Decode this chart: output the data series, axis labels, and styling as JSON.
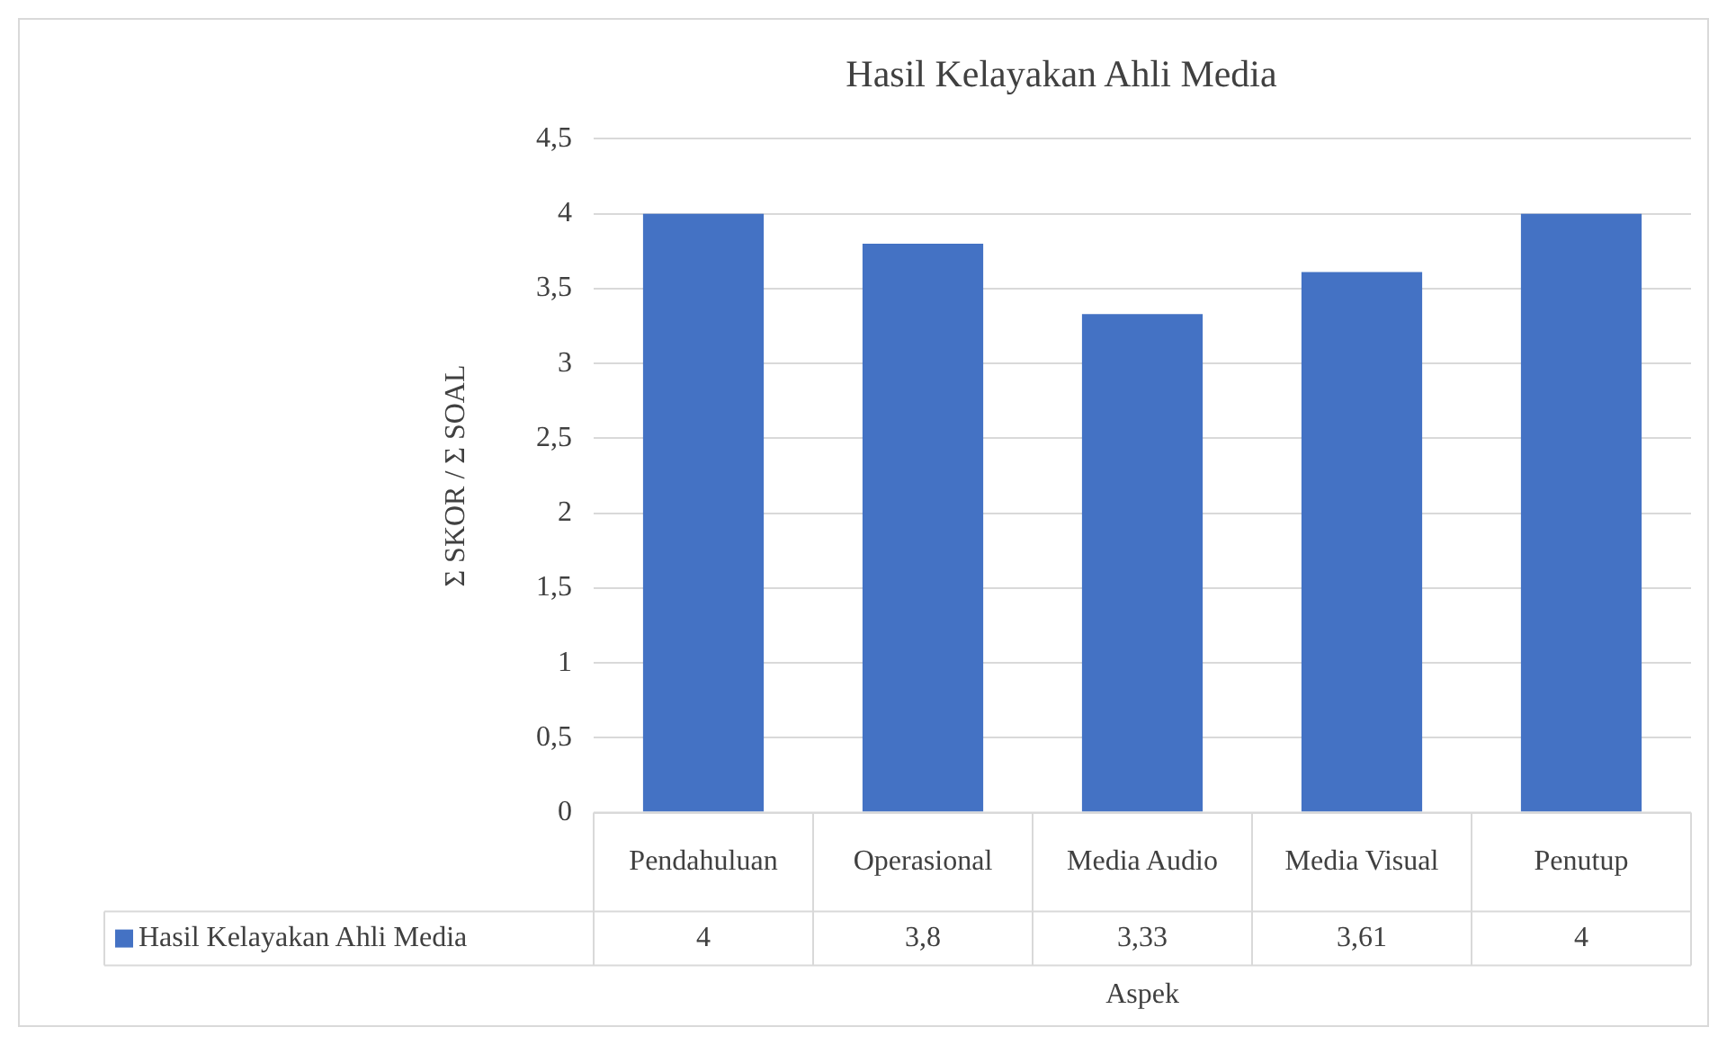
{
  "chart_data": {
    "type": "bar",
    "title": "Hasil Kelayakan Ahli Media",
    "xlabel": "Aspek",
    "ylabel": "Σ SKOR / Σ SOAL",
    "categories": [
      "Pendahuluan",
      "Operasional",
      "Media Audio",
      "Media Visual",
      "Penutup"
    ],
    "series": [
      {
        "name": "Hasil Kelayakan Ahli Media",
        "color": "#4472c4",
        "values": [
          4,
          3.8,
          3.33,
          3.61,
          4
        ],
        "value_labels": [
          "4",
          "3,8",
          "3,33",
          "3,61",
          "4"
        ]
      }
    ],
    "ylim": [
      0,
      4.5
    ],
    "yticks": [
      0,
      {
        "value": 0.5,
        "label": "0,5"
      },
      1,
      {
        "value": 1.5,
        "label": "1,5"
      },
      2,
      {
        "value": 2.5,
        "label": "2,5"
      },
      3,
      {
        "value": 3.5,
        "label": "3,5"
      },
      4,
      {
        "value": 4.5,
        "label": "4,5"
      }
    ],
    "grid": "y"
  }
}
